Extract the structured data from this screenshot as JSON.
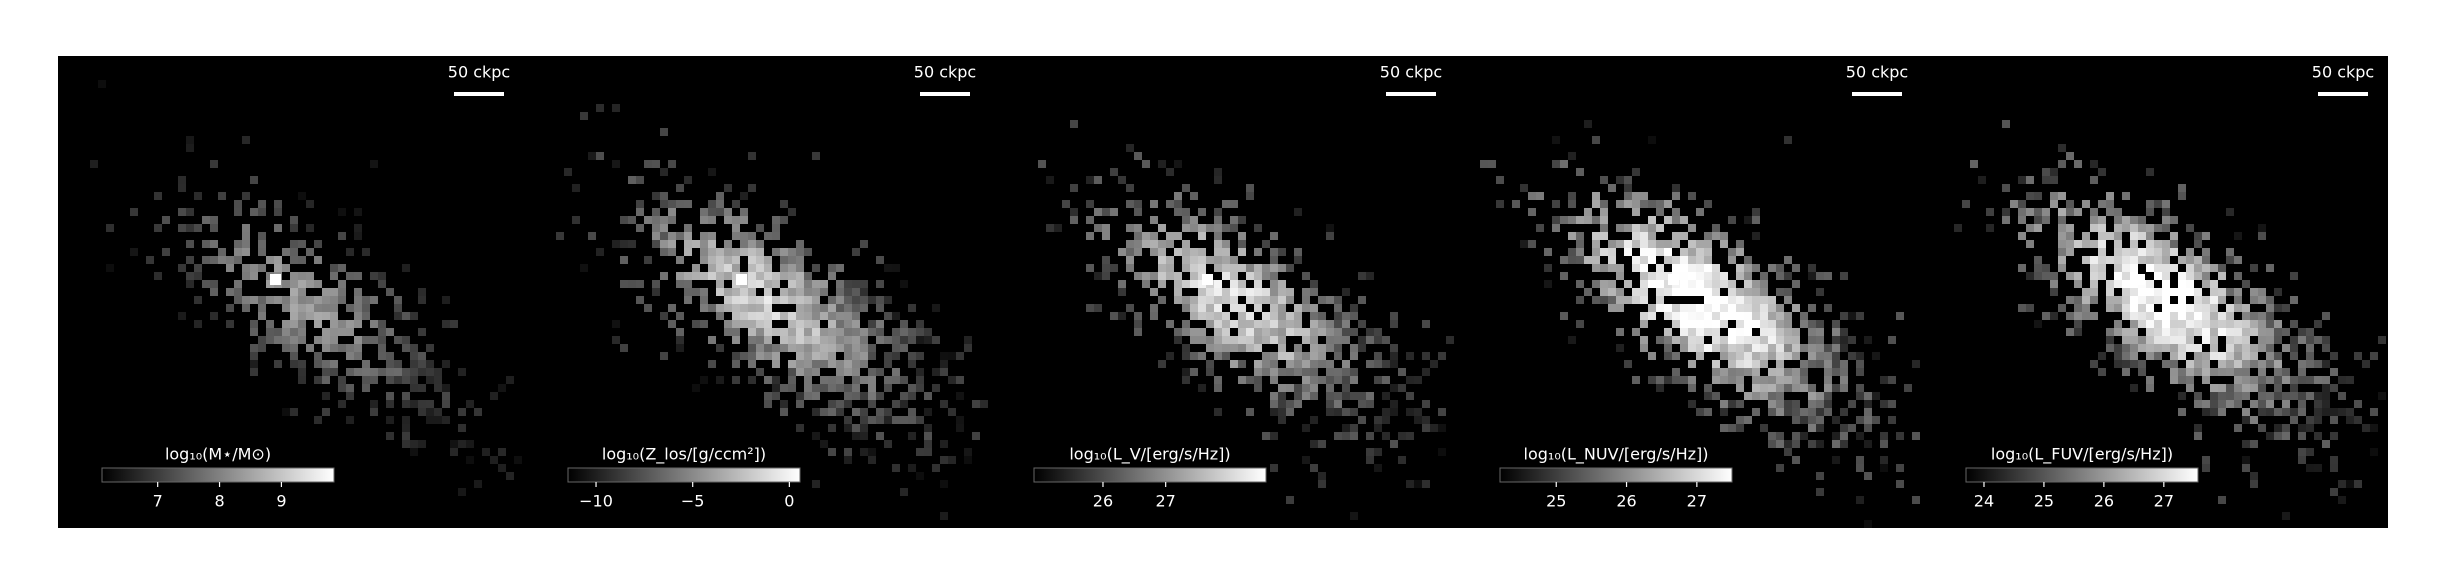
{
  "chart_data": [
    {
      "type": "image",
      "scale_bar_label": "50 ckpc",
      "colorbar_label": "log₁₀(M⋆/M⊙)",
      "clim": [
        6.1,
        9.85
      ],
      "cticks": [
        7,
        8,
        9
      ]
    },
    {
      "type": "image",
      "scale_bar_label": "50 ckpc",
      "colorbar_label": "log₁₀(Z_los/[g/ccm²])",
      "clim": [
        -11.45,
        0.55
      ],
      "cticks": [
        {
          "value": -10,
          "label": "−10"
        },
        {
          "value": -5,
          "label": "−5"
        },
        0
      ]
    },
    {
      "type": "image",
      "scale_bar_label": "50 ckpc",
      "colorbar_label": "log₁₀(L_V/[erg/s/Hz])",
      "clim": [
        24.9,
        28.6
      ],
      "cticks": [
        26,
        27
      ]
    },
    {
      "type": "image",
      "scale_bar_label": "50 ckpc",
      "colorbar_label": "log₁₀(L_NUV/[erg/s/Hz])",
      "clim": [
        24.2,
        27.5
      ],
      "cticks": [
        25,
        26,
        27
      ]
    },
    {
      "type": "image",
      "scale_bar_label": "50 ckpc",
      "colorbar_label": "log₁₀(L_FUV/[erg/s/Hz])",
      "clim": [
        23.7,
        27.57
      ],
      "cticks": [
        24,
        25,
        26,
        27
      ]
    }
  ]
}
